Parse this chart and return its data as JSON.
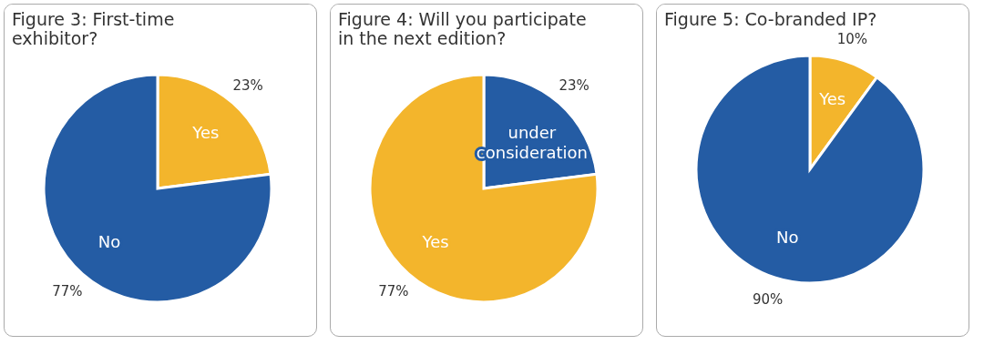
{
  "chart_data": [
    {
      "type": "pie",
      "title": "Figure 3: First-time exhibitor?",
      "categories": [
        "Yes",
        "No"
      ],
      "values": [
        23,
        77
      ],
      "colors": [
        "#f3b52c",
        "#245ca4"
      ],
      "value_labels": [
        "23%",
        "77%"
      ]
    },
    {
      "type": "pie",
      "title": "Figure 4: Will you participate in the next edition?",
      "categories": [
        "under consideration",
        "Yes"
      ],
      "values": [
        23,
        77
      ],
      "colors": [
        "#245ca4",
        "#f3b52c"
      ],
      "value_labels": [
        "23%",
        "77%"
      ]
    },
    {
      "type": "pie",
      "title": "Figure 5: Co-branded IP?",
      "categories": [
        "Yes",
        "No"
      ],
      "values": [
        10,
        90
      ],
      "colors": [
        "#f3b52c",
        "#245ca4"
      ],
      "value_labels": [
        "10%",
        "90%"
      ]
    }
  ]
}
